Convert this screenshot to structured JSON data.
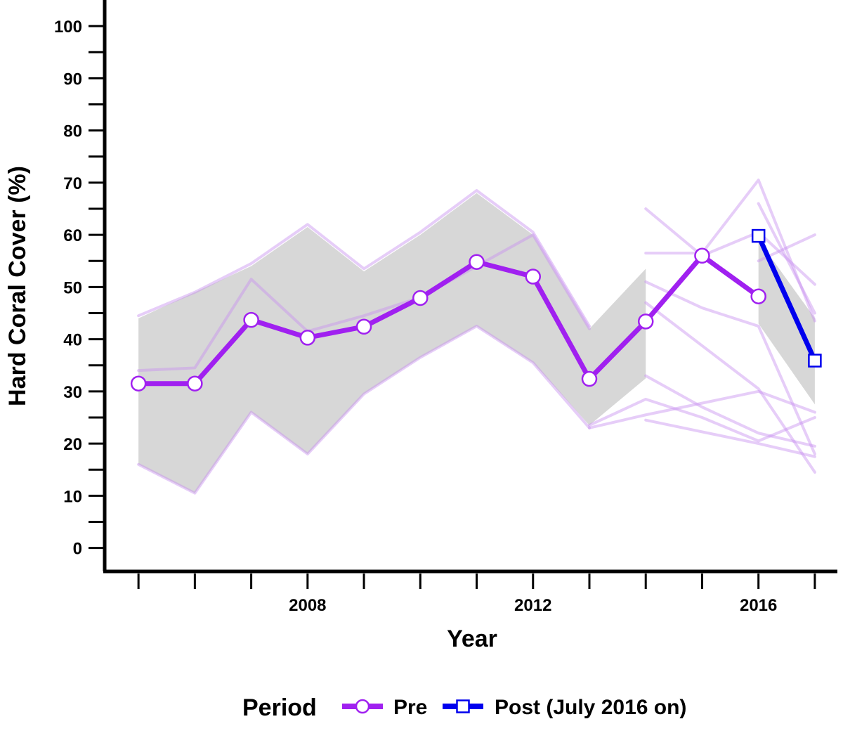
{
  "chart_data": {
    "type": "line",
    "xlabel": "Year",
    "ylabel": "Hard Coral Cover (%)",
    "xlim": [
      2004.4,
      2017.4
    ],
    "ylim": [
      -4.5,
      105
    ],
    "x_ticks": [
      2005,
      2006,
      2007,
      2008,
      2009,
      2010,
      2011,
      2012,
      2013,
      2014,
      2015,
      2016,
      2017
    ],
    "x_tick_labels": [
      {
        "x": 2008,
        "label": "2008"
      },
      {
        "x": 2012,
        "label": "2012"
      },
      {
        "x": 2016,
        "label": "2016"
      }
    ],
    "y_ticks": [
      0,
      10,
      20,
      30,
      40,
      50,
      60,
      70,
      80,
      90,
      100
    ],
    "y_minor_step": 5,
    "legend": {
      "title": "Period",
      "position": "bottom"
    },
    "colors": {
      "pre": "#a020f0",
      "post": "#0000ee",
      "ribbon": "#d3d3d3",
      "site_lines": "#c890f0"
    },
    "series": [
      {
        "name": "Pre",
        "key": "pre",
        "marker": "circle",
        "x": [
          2005,
          2006,
          2007,
          2008,
          2009,
          2010,
          2011,
          2012,
          2013,
          2014,
          2015,
          2016
        ],
        "y": [
          31.5,
          31.5,
          43.7,
          40.3,
          42.4,
          47.9,
          54.8,
          52.0,
          32.4,
          43.4,
          56.0,
          48.2
        ]
      },
      {
        "name": "Post (July 2016 on)",
        "key": "post",
        "marker": "square",
        "x": [
          2016,
          2017
        ],
        "y": [
          59.8,
          35.9
        ]
      }
    ],
    "ribbons": [
      {
        "series": "Pre",
        "x": [
          2005,
          2006,
          2007,
          2008,
          2009,
          2010,
          2011,
          2012,
          2013,
          2014
        ],
        "lower": [
          16.0,
          10.5,
          26.0,
          18.0,
          29.5,
          36.5,
          42.5,
          35.5,
          23.5,
          32.5
        ],
        "upper": [
          44.0,
          49.0,
          54.0,
          61.5,
          53.0,
          60.0,
          68.0,
          60.0,
          42.0,
          53.5
        ]
      },
      {
        "series": "Post (July 2016 on)",
        "x": [
          2016,
          2017
        ],
        "lower": [
          43.0,
          27.5
        ],
        "upper": [
          59.0,
          44.0
        ]
      }
    ],
    "site_lines": [
      {
        "x": [
          2005,
          2006,
          2007,
          2008,
          2009,
          2010,
          2011,
          2012,
          2013
        ],
        "y": [
          44.5,
          49.0,
          54.5,
          62.0,
          53.5,
          60.5,
          68.5,
          60.5,
          42.5
        ]
      },
      {
        "x": [
          2005,
          2006,
          2007,
          2008,
          2009,
          2010,
          2011,
          2012,
          2013
        ],
        "y": [
          16.0,
          10.5,
          26.0,
          18.0,
          29.5,
          36.5,
          42.5,
          35.5,
          23.0
        ]
      },
      {
        "x": [
          2005,
          2006,
          2007,
          2008,
          2009,
          2010,
          2011,
          2012,
          2013
        ],
        "y": [
          34.0,
          34.5,
          51.5,
          41.5,
          44.5,
          48.0,
          54.0,
          60.0,
          42.0
        ]
      },
      {
        "x": [
          2013,
          2014,
          2015,
          2016,
          2017
        ],
        "y": [
          23.5,
          28.5,
          25.0,
          20.5,
          25.0
        ]
      },
      {
        "x": [
          2013,
          2014,
          2016,
          2017
        ],
        "y": [
          23.0,
          25.5,
          30.0,
          26.0
        ]
      },
      {
        "x": [
          2014,
          2015,
          2016,
          2017
        ],
        "y": [
          56.5,
          56.5,
          70.5,
          43.5
        ]
      },
      {
        "x": [
          2014,
          2015,
          2016,
          2017
        ],
        "y": [
          65.0,
          56.0,
          60.5,
          50.5
        ]
      },
      {
        "x": [
          2014,
          2015,
          2016,
          2017
        ],
        "y": [
          51.0,
          46.0,
          42.5,
          18.0
        ]
      },
      {
        "x": [
          2014,
          2016,
          2017
        ],
        "y": [
          47.0,
          30.5,
          14.5
        ]
      },
      {
        "x": [
          2014,
          2015,
          2016,
          2017
        ],
        "y": [
          33.0,
          27.0,
          22.0,
          19.5
        ]
      },
      {
        "x": [
          2014,
          2016,
          2017
        ],
        "y": [
          24.5,
          20.0,
          17.5
        ]
      },
      {
        "x": [
          2016,
          2017
        ],
        "y": [
          55.0,
          60.0
        ]
      },
      {
        "x": [
          2016,
          2017
        ],
        "y": [
          66.0,
          45.0
        ]
      }
    ]
  }
}
